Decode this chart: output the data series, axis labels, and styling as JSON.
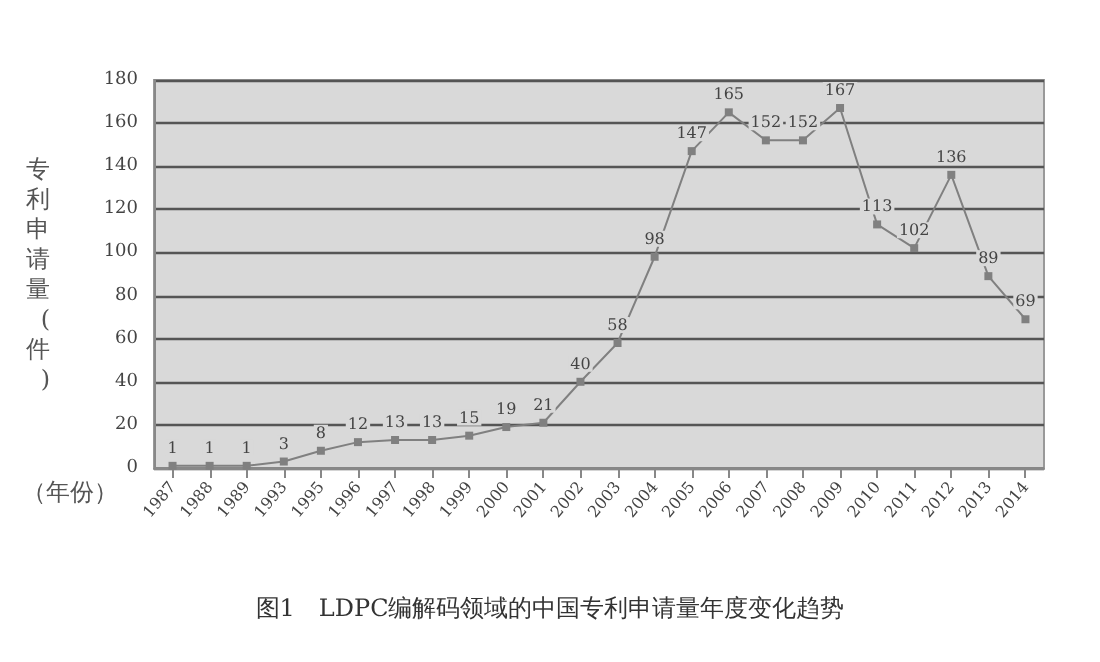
{
  "chart_data": {
    "type": "line",
    "title": "图1　LDPC编解码领域的中国专利申请量年度变化趋势",
    "xlabel": "（年份）",
    "ylabel": "专利申请量(件)",
    "categories": [
      "1987",
      "1988",
      "1989",
      "1993",
      "1995",
      "1996",
      "1997",
      "1998",
      "1999",
      "2000",
      "2001",
      "2002",
      "2003",
      "2004",
      "2005",
      "2006",
      "2007",
      "2008",
      "2009",
      "2010",
      "2011",
      "2012",
      "2013",
      "2014"
    ],
    "series": [
      {
        "color": "#808080",
        "values": [
          1,
          1,
          1,
          3,
          8,
          12,
          13,
          13,
          15,
          19,
          21,
          40,
          58,
          98,
          147,
          165,
          152,
          152,
          167,
          113,
          102,
          136,
          89,
          69
        ]
      }
    ],
    "ylim": [
      0,
      180
    ],
    "yticks": [
      0,
      20,
      40,
      60,
      80,
      100,
      120,
      140,
      160,
      180
    ],
    "grid": "y",
    "marker": "square",
    "line_style": "solid",
    "data_labels": true
  }
}
